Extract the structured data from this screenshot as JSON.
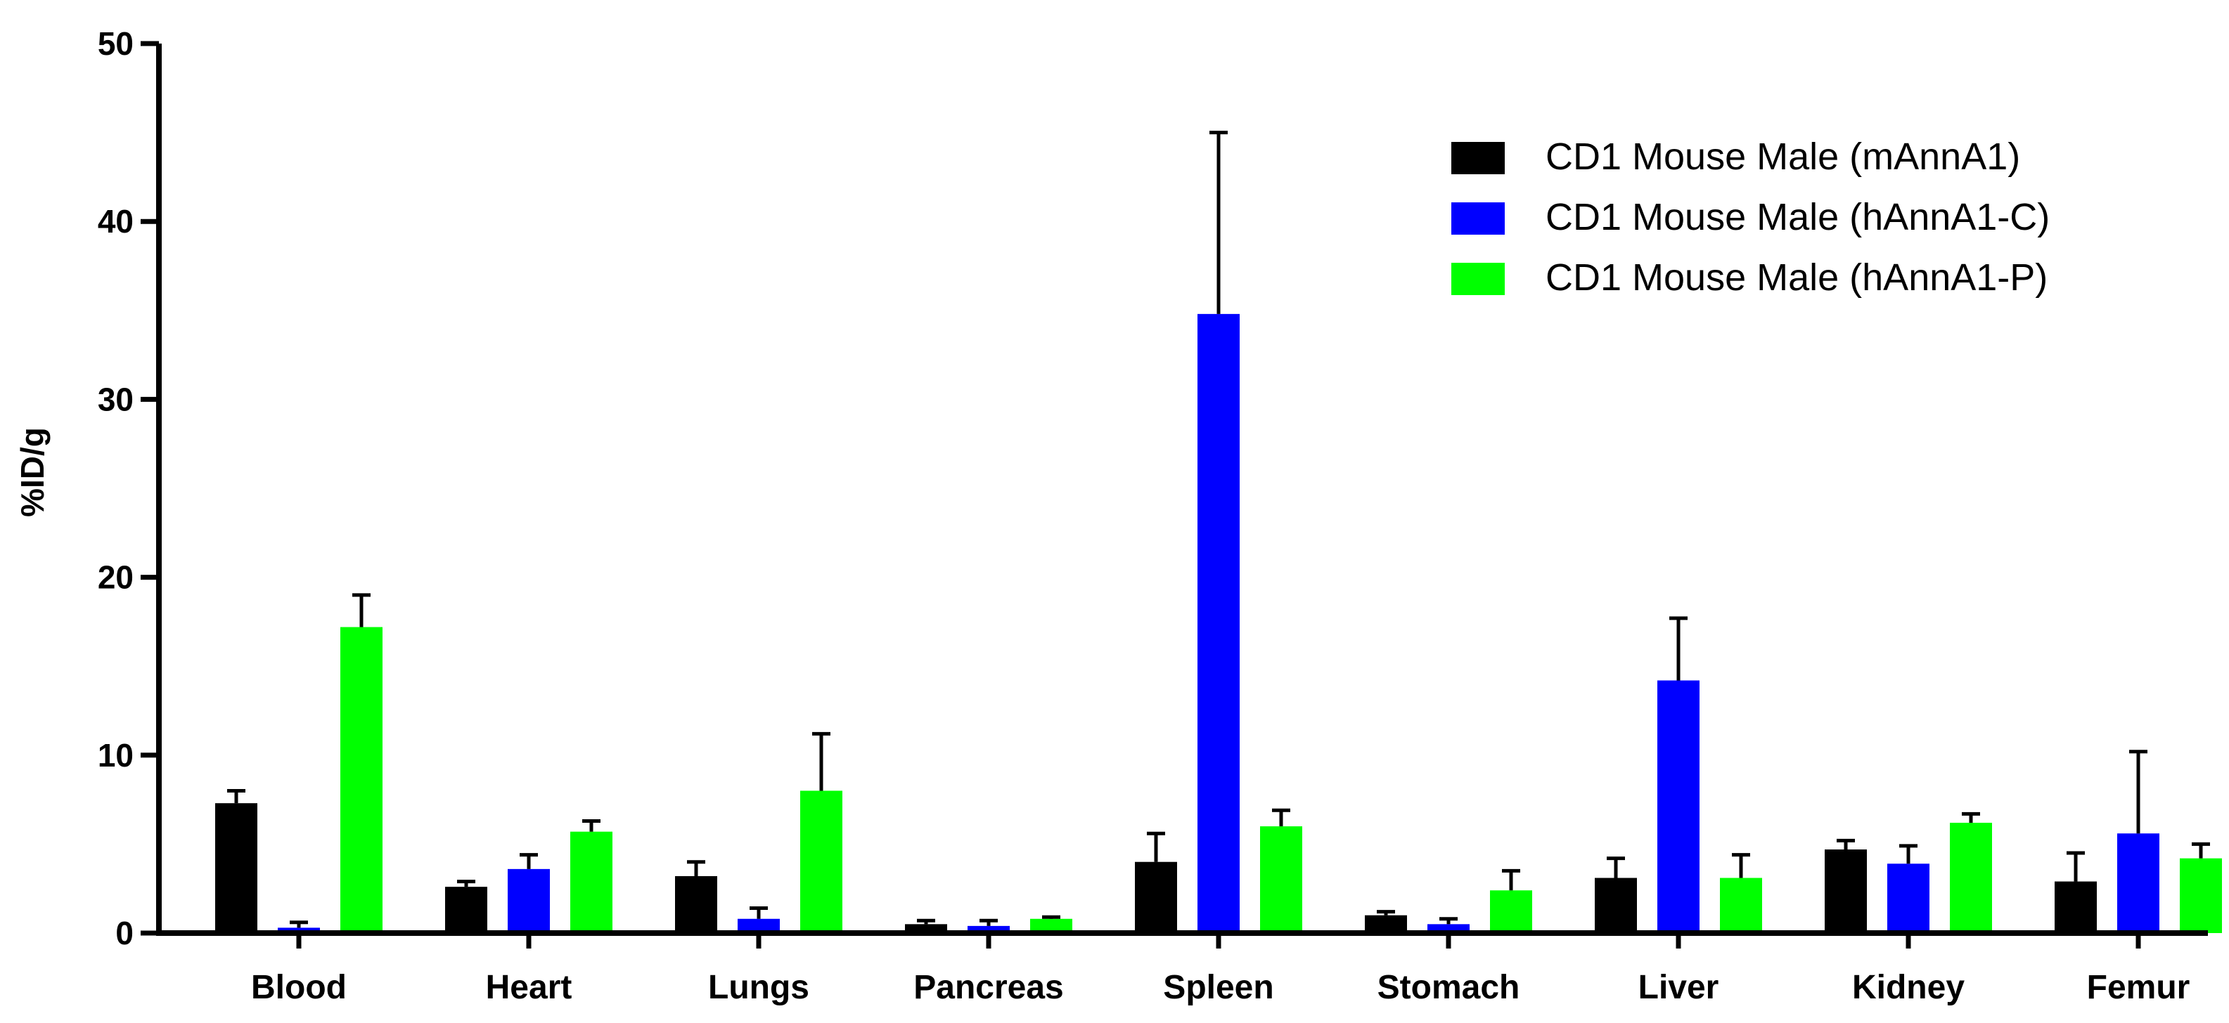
{
  "chart_data": {
    "type": "bar",
    "title": "",
    "xlabel": "",
    "ylabel": "%ID/g",
    "ylim": [
      0,
      50
    ],
    "yticks": [
      0,
      10,
      20,
      30,
      40,
      50
    ],
    "grid": false,
    "legend_position": "top-right",
    "categories": [
      "Blood",
      "Heart",
      "Lungs",
      "Pancreas",
      "Spleen",
      "Stomach",
      "Liver",
      "Kidney",
      "Femur"
    ],
    "series": [
      {
        "name": "CD1 Mouse Male (mAnnA1)",
        "color": "#000000",
        "values": [
          7.3,
          2.6,
          3.2,
          0.5,
          4.0,
          1.0,
          3.1,
          4.7,
          2.9
        ],
        "errors": [
          0.7,
          0.3,
          0.8,
          0.2,
          1.6,
          0.2,
          1.1,
          0.5,
          1.6
        ]
      },
      {
        "name": "CD1 Mouse Male (hAnnA1-C)",
        "color": "#0000ff",
        "values": [
          0.3,
          3.6,
          0.8,
          0.4,
          34.8,
          0.5,
          14.2,
          3.9,
          5.6
        ],
        "errors": [
          0.3,
          0.8,
          0.6,
          0.3,
          10.2,
          0.3,
          3.5,
          1.0,
          4.6
        ]
      },
      {
        "name": "CD1 Mouse Male (hAnnA1-P)",
        "color": "#00ff00",
        "values": [
          17.2,
          5.7,
          8.0,
          0.8,
          6.0,
          2.4,
          3.1,
          6.2,
          4.2
        ],
        "errors": [
          1.8,
          0.6,
          3.2,
          0.1,
          0.9,
          1.1,
          1.3,
          0.5,
          0.8
        ]
      }
    ]
  }
}
